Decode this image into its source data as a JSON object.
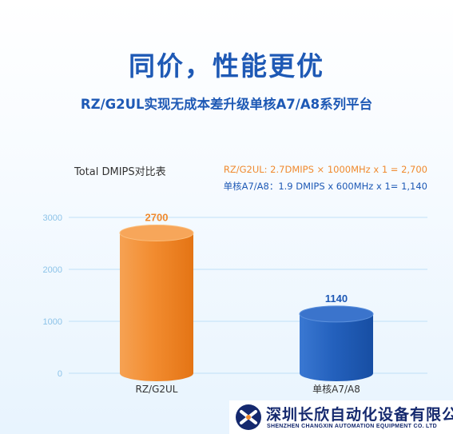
{
  "header": {
    "title": "同价，性能更优",
    "subtitle": "RZ/G2UL实现无成本差升级单核A7/A8系列平台"
  },
  "chart_data": {
    "type": "bar",
    "title": "Total DMIPS对比表",
    "categories": [
      "RZ/G2UL",
      "单核A7/A8"
    ],
    "values": [
      2700,
      1140
    ],
    "value_labels": [
      "2700",
      "1140"
    ],
    "yticks": [
      0,
      1000,
      2000,
      3000
    ],
    "ylim": [
      0,
      3300
    ],
    "grid": true,
    "bar_colors": [
      "#f08a2e",
      "#1e59b5"
    ],
    "annotations": [
      "RZ/G2UL: 2.7DMIPS × 1000MHz x 1 = 2,700",
      "单核A7/A8：1.9 DMIPS x 600MHz x 1= 1,140"
    ]
  },
  "brand": {
    "name": "深圳长欣自动化设备有限公司",
    "name_en": "SHENZHEN CHANGXIN AUTOMATION EQUIPMENT CO. LTD"
  },
  "colors": {
    "accent_blue": "#1e59b5",
    "accent_orange": "#f08a2e",
    "grid": "#bfe0f7",
    "axis_text": "#8cc3e8"
  }
}
